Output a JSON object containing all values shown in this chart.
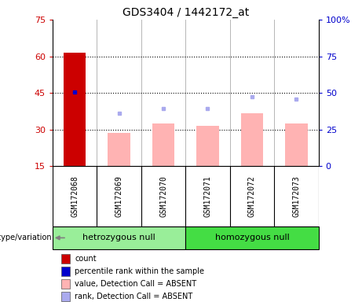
{
  "title": "GDS3404 / 1442172_at",
  "samples": [
    "GSM172068",
    "GSM172069",
    "GSM172070",
    "GSM172071",
    "GSM172072",
    "GSM172073"
  ],
  "groups": [
    "hetrozygous null",
    "homozygous null"
  ],
  "ylim_left": [
    15,
    75
  ],
  "ylim_right": [
    0,
    100
  ],
  "yticks_left": [
    15,
    30,
    45,
    60,
    75
  ],
  "yticks_right": [
    0,
    25,
    50,
    75,
    100
  ],
  "ytick_labels_left": [
    "15",
    "30",
    "45",
    "60",
    "75"
  ],
  "ytick_labels_right": [
    "0",
    "25",
    "50",
    "75",
    "100%"
  ],
  "count_values": [
    61.5,
    null,
    null,
    null,
    null,
    null
  ],
  "percentile_values": [
    45.5,
    null,
    null,
    null,
    null,
    null
  ],
  "absent_values": [
    null,
    28.5,
    32.5,
    31.5,
    36.5,
    32.5
  ],
  "absent_ranks": [
    null,
    36.5,
    38.5,
    38.5,
    43.5,
    42.5
  ],
  "bar_color_count": "#cc0000",
  "bar_color_absent": "#ffb3b3",
  "dot_color_percentile": "#0000cc",
  "dot_color_rank_absent": "#aaaaee",
  "bg_color": "#d8d8d8",
  "plot_bg": "#ffffff",
  "legend_items": [
    {
      "color": "#cc0000",
      "label": "count"
    },
    {
      "color": "#0000cc",
      "label": "percentile rank within the sample"
    },
    {
      "color": "#ffb3b3",
      "label": "value, Detection Call = ABSENT"
    },
    {
      "color": "#aaaaee",
      "label": "rank, Detection Call = ABSENT"
    }
  ],
  "group_colors": [
    "#99ee99",
    "#44dd44"
  ],
  "label_color_left": "#cc0000",
  "label_color_right": "#0000cc",
  "bar_width": 0.5
}
